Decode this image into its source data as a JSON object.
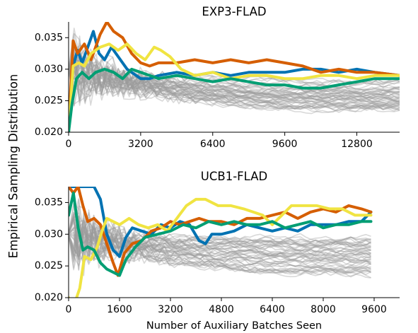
{
  "figure": {
    "ylabel": "Empirical Sampling Distribution",
    "xlabel": "Number of Auxiliary Batches Seen"
  },
  "series_colors": {
    "blue": "#0072B2",
    "orange": "#D55E00",
    "yellow": "#F0E442",
    "green": "#009E73",
    "background": "#9a9a9a"
  },
  "chart_data": [
    {
      "type": "line",
      "title": "EXP3-FLAD",
      "xlabel": "",
      "ylabel": "Empirical Sampling Distribution",
      "xlim": [
        0,
        14700
      ],
      "ylim": [
        0.02,
        0.0375
      ],
      "xticks": [
        "0",
        "3200",
        "6400",
        "9600",
        "12800"
      ],
      "yticks": [
        "0.020",
        "0.025",
        "0.030",
        "0.035"
      ],
      "grid": false,
      "legend": "none",
      "background_series": {
        "count": 50,
        "color": "gray",
        "start": 0.03,
        "final_range": [
          0.0235,
          0.0285
        ],
        "x_end": 14700
      },
      "series": [
        {
          "color": "blue",
          "points": [
            [
              0,
              0.02
            ],
            [
              200,
              0.0305
            ],
            [
              400,
              0.033
            ],
            [
              600,
              0.031
            ],
            [
              850,
              0.0335
            ],
            [
              1100,
              0.036
            ],
            [
              1350,
              0.0325
            ],
            [
              1600,
              0.0315
            ],
            [
              1900,
              0.0335
            ],
            [
              2200,
              0.032
            ],
            [
              2600,
              0.03
            ],
            [
              3200,
              0.0285
            ],
            [
              3600,
              0.0285
            ],
            [
              4000,
              0.029
            ],
            [
              4800,
              0.0295
            ],
            [
              5600,
              0.029
            ],
            [
              6400,
              0.0295
            ],
            [
              7200,
              0.029
            ],
            [
              8000,
              0.0295
            ],
            [
              8800,
              0.0295
            ],
            [
              9600,
              0.0295
            ],
            [
              10400,
              0.03
            ],
            [
              11200,
              0.03
            ],
            [
              12000,
              0.0295
            ],
            [
              12800,
              0.03
            ],
            [
              13600,
              0.0295
            ],
            [
              14700,
              0.029
            ]
          ]
        },
        {
          "color": "orange",
          "points": [
            [
              0,
              0.02
            ],
            [
              200,
              0.0345
            ],
            [
              400,
              0.0325
            ],
            [
              700,
              0.034
            ],
            [
              1000,
              0.0315
            ],
            [
              1400,
              0.0355
            ],
            [
              1700,
              0.0375
            ],
            [
              2000,
              0.036
            ],
            [
              2400,
              0.035
            ],
            [
              2800,
              0.0325
            ],
            [
              3200,
              0.031
            ],
            [
              3600,
              0.0305
            ],
            [
              4000,
              0.031
            ],
            [
              4800,
              0.031
            ],
            [
              5600,
              0.0315
            ],
            [
              6400,
              0.031
            ],
            [
              7200,
              0.0315
            ],
            [
              8000,
              0.031
            ],
            [
              8800,
              0.0315
            ],
            [
              9600,
              0.031
            ],
            [
              10400,
              0.0305
            ],
            [
              11200,
              0.0295
            ],
            [
              12000,
              0.03
            ],
            [
              12800,
              0.0295
            ],
            [
              13600,
              0.0295
            ],
            [
              14700,
              0.029
            ]
          ]
        },
        {
          "color": "yellow",
          "points": [
            [
              0,
              0.02
            ],
            [
              200,
              0.0305
            ],
            [
              450,
              0.031
            ],
            [
              700,
              0.0305
            ],
            [
              1000,
              0.0325
            ],
            [
              1400,
              0.0335
            ],
            [
              1800,
              0.034
            ],
            [
              2200,
              0.033
            ],
            [
              2600,
              0.034
            ],
            [
              3000,
              0.0325
            ],
            [
              3400,
              0.0315
            ],
            [
              3800,
              0.0335
            ],
            [
              4100,
              0.033
            ],
            [
              4500,
              0.032
            ],
            [
              5000,
              0.03
            ],
            [
              5600,
              0.029
            ],
            [
              6400,
              0.0295
            ],
            [
              7200,
              0.0285
            ],
            [
              8000,
              0.029
            ],
            [
              8800,
              0.029
            ],
            [
              9600,
              0.0285
            ],
            [
              10400,
              0.0285
            ],
            [
              11200,
              0.029
            ],
            [
              12000,
              0.029
            ],
            [
              12800,
              0.0285
            ],
            [
              13600,
              0.029
            ],
            [
              14700,
              0.029
            ]
          ]
        },
        {
          "color": "green",
          "points": [
            [
              0,
              0.02
            ],
            [
              150,
              0.0245
            ],
            [
              350,
              0.0285
            ],
            [
              600,
              0.0295
            ],
            [
              900,
              0.0285
            ],
            [
              1200,
              0.0295
            ],
            [
              1600,
              0.03
            ],
            [
              2000,
              0.0295
            ],
            [
              2400,
              0.0285
            ],
            [
              2800,
              0.03
            ],
            [
              3200,
              0.0295
            ],
            [
              3600,
              0.029
            ],
            [
              4000,
              0.0285
            ],
            [
              4800,
              0.029
            ],
            [
              5600,
              0.0285
            ],
            [
              6400,
              0.028
            ],
            [
              7200,
              0.0285
            ],
            [
              8000,
              0.028
            ],
            [
              8800,
              0.0275
            ],
            [
              9600,
              0.0275
            ],
            [
              10400,
              0.027
            ],
            [
              11200,
              0.027
            ],
            [
              12000,
              0.0275
            ],
            [
              12800,
              0.028
            ],
            [
              13600,
              0.0285
            ],
            [
              14700,
              0.0285
            ]
          ]
        }
      ]
    },
    {
      "type": "line",
      "title": "UCB1-FLAD",
      "xlabel": "Number of Auxiliary Batches Seen",
      "ylabel": "Empirical Sampling Distribution",
      "xlim": [
        0,
        10400
      ],
      "ylim": [
        0.02,
        0.0375
      ],
      "xticks": [
        "0",
        "1600",
        "3200",
        "4800",
        "6400",
        "8000",
        "9600"
      ],
      "yticks": [
        "0.020",
        "0.025",
        "0.030",
        "0.035"
      ],
      "grid": false,
      "legend": "none",
      "background_series": {
        "count": 50,
        "color": "gray",
        "start": 0.03,
        "final_range": [
          0.0235,
          0.0295
        ],
        "x_end": 9500
      },
      "series": [
        {
          "color": "blue",
          "points": [
            [
              0,
              0.0375
            ],
            [
              250,
              0.0375
            ],
            [
              500,
              0.0375
            ],
            [
              800,
              0.0375
            ],
            [
              1000,
              0.0355
            ],
            [
              1200,
              0.03
            ],
            [
              1400,
              0.0275
            ],
            [
              1600,
              0.0265
            ],
            [
              1800,
              0.0295
            ],
            [
              2000,
              0.031
            ],
            [
              2300,
              0.0305
            ],
            [
              2600,
              0.03
            ],
            [
              2900,
              0.0315
            ],
            [
              3200,
              0.031
            ],
            [
              3500,
              0.032
            ],
            [
              3800,
              0.0315
            ],
            [
              4100,
              0.029
            ],
            [
              4300,
              0.0285
            ],
            [
              4500,
              0.03
            ],
            [
              4800,
              0.03
            ],
            [
              5200,
              0.0305
            ],
            [
              5600,
              0.0315
            ],
            [
              6000,
              0.031
            ],
            [
              6400,
              0.0305
            ],
            [
              6800,
              0.031
            ],
            [
              7200,
              0.0305
            ],
            [
              7600,
              0.0315
            ],
            [
              8000,
              0.0315
            ],
            [
              8400,
              0.0315
            ],
            [
              8800,
              0.032
            ],
            [
              9200,
              0.032
            ],
            [
              9500,
              0.0335
            ]
          ]
        },
        {
          "color": "orange",
          "points": [
            [
              0,
              0.0375
            ],
            [
              150,
              0.0365
            ],
            [
              300,
              0.0375
            ],
            [
              450,
              0.0345
            ],
            [
              600,
              0.032
            ],
            [
              800,
              0.0325
            ],
            [
              1000,
              0.0315
            ],
            [
              1200,
              0.0285
            ],
            [
              1400,
              0.0255
            ],
            [
              1550,
              0.0235
            ],
            [
              1750,
              0.027
            ],
            [
              2000,
              0.0285
            ],
            [
              2300,
              0.029
            ],
            [
              2600,
              0.0305
            ],
            [
              2900,
              0.031
            ],
            [
              3200,
              0.032
            ],
            [
              3500,
              0.0315
            ],
            [
              3800,
              0.032
            ],
            [
              4100,
              0.0325
            ],
            [
              4400,
              0.032
            ],
            [
              4800,
              0.032
            ],
            [
              5200,
              0.0315
            ],
            [
              5600,
              0.0325
            ],
            [
              6000,
              0.0325
            ],
            [
              6400,
              0.033
            ],
            [
              6800,
              0.0335
            ],
            [
              7200,
              0.0325
            ],
            [
              7600,
              0.0335
            ],
            [
              8000,
              0.034
            ],
            [
              8400,
              0.0335
            ],
            [
              8800,
              0.0345
            ],
            [
              9200,
              0.034
            ],
            [
              9500,
              0.0335
            ]
          ]
        },
        {
          "color": "yellow",
          "points": [
            [
              0,
              0.02
            ],
            [
              150,
              0.0185
            ],
            [
              350,
              0.0215
            ],
            [
              500,
              0.0265
            ],
            [
              700,
              0.026
            ],
            [
              900,
              0.028
            ],
            [
              1050,
              0.0305
            ],
            [
              1200,
              0.0325
            ],
            [
              1400,
              0.032
            ],
            [
              1600,
              0.0315
            ],
            [
              1900,
              0.0325
            ],
            [
              2200,
              0.0315
            ],
            [
              2500,
              0.031
            ],
            [
              2800,
              0.0315
            ],
            [
              3100,
              0.0305
            ],
            [
              3400,
              0.0325
            ],
            [
              3700,
              0.0345
            ],
            [
              4000,
              0.0355
            ],
            [
              4300,
              0.0355
            ],
            [
              4700,
              0.0345
            ],
            [
              5100,
              0.0345
            ],
            [
              5500,
              0.034
            ],
            [
              5800,
              0.0335
            ],
            [
              6100,
              0.033
            ],
            [
              6400,
              0.0315
            ],
            [
              6700,
              0.033
            ],
            [
              7000,
              0.0345
            ],
            [
              7400,
              0.0345
            ],
            [
              7800,
              0.0345
            ],
            [
              8200,
              0.034
            ],
            [
              8600,
              0.034
            ],
            [
              9000,
              0.033
            ],
            [
              9500,
              0.033
            ]
          ]
        },
        {
          "color": "green",
          "points": [
            [
              0,
              0.033
            ],
            [
              150,
              0.0365
            ],
            [
              300,
              0.031
            ],
            [
              450,
              0.0275
            ],
            [
              600,
              0.028
            ],
            [
              800,
              0.0275
            ],
            [
              1000,
              0.0255
            ],
            [
              1200,
              0.0245
            ],
            [
              1400,
              0.024
            ],
            [
              1600,
              0.0235
            ],
            [
              1800,
              0.026
            ],
            [
              2100,
              0.028
            ],
            [
              2400,
              0.0295
            ],
            [
              2800,
              0.03
            ],
            [
              3200,
              0.0305
            ],
            [
              3600,
              0.0315
            ],
            [
              4000,
              0.031
            ],
            [
              4400,
              0.032
            ],
            [
              4800,
              0.0315
            ],
            [
              5200,
              0.032
            ],
            [
              5600,
              0.0315
            ],
            [
              6000,
              0.0315
            ],
            [
              6400,
              0.032
            ],
            [
              6800,
              0.031
            ],
            [
              7200,
              0.0315
            ],
            [
              7600,
              0.032
            ],
            [
              8000,
              0.031
            ],
            [
              8400,
              0.0315
            ],
            [
              8800,
              0.0315
            ],
            [
              9200,
              0.032
            ],
            [
              9500,
              0.032
            ]
          ]
        }
      ]
    }
  ]
}
